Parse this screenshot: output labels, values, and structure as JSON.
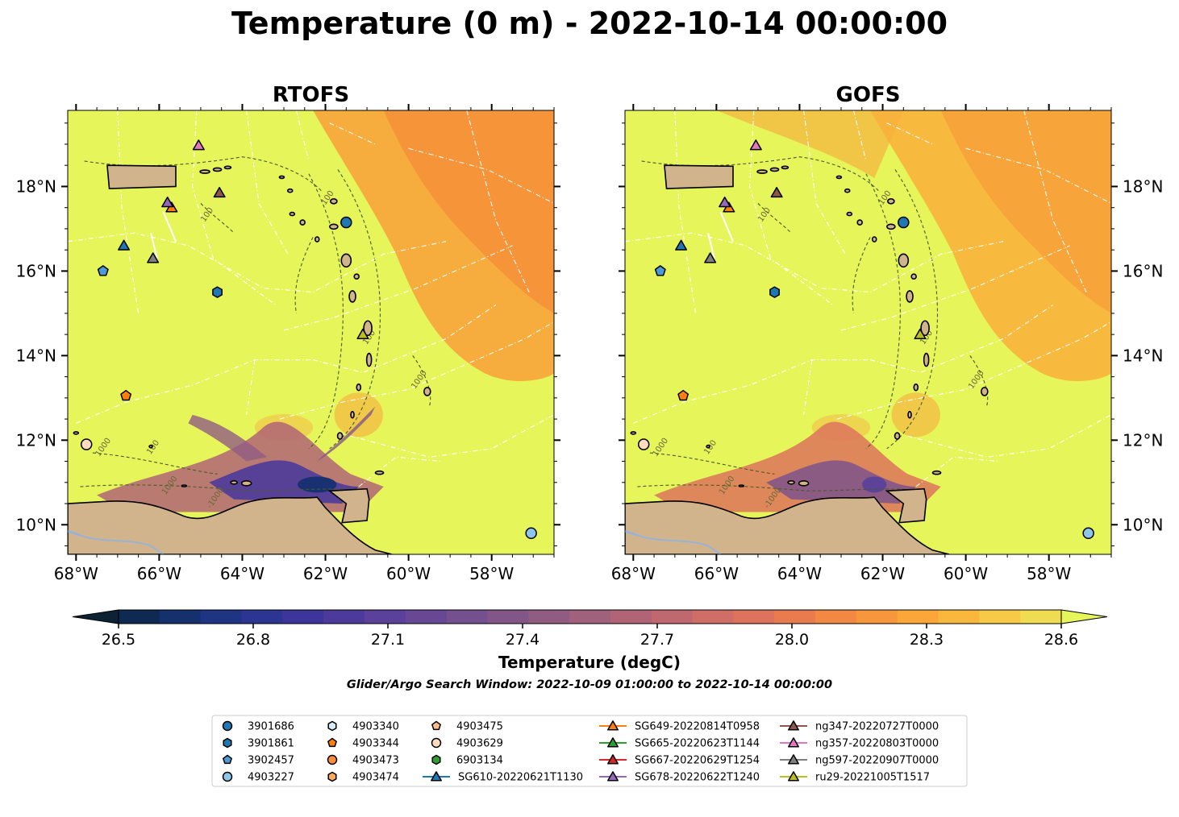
{
  "chart_data": {
    "type": "heatmap",
    "title": "Temperature (0 m) - 2022-10-14 00:00:00",
    "panels": [
      {
        "title": "RTOFS",
        "model": "RTOFS"
      },
      {
        "title": "GOFS",
        "model": "GOFS"
      }
    ],
    "xlim": [
      -68.2,
      -56.5
    ],
    "ylim": [
      9.3,
      19.8
    ],
    "x_ticks": [
      -68,
      -66,
      -64,
      -62,
      -60,
      -58
    ],
    "x_tick_labels": [
      "68°W",
      "66°W",
      "64°W",
      "62°W",
      "60°W",
      "58°W"
    ],
    "y_ticks": [
      10,
      12,
      14,
      16,
      18
    ],
    "y_tick_labels": [
      "10°N",
      "12°N",
      "14°N",
      "16°N",
      "18°N"
    ],
    "colorbar": {
      "label": "Temperature (degC)",
      "min": 26.4,
      "max": 28.6,
      "ticks": [
        26.5,
        26.8,
        27.1,
        27.4,
        27.7,
        28.0,
        28.3,
        28.6
      ],
      "tick_labels": [
        "26.5",
        "26.8",
        "27.1",
        "27.4",
        "27.7",
        "28.0",
        "28.3",
        "28.6"
      ],
      "colors": [
        "#0d2233",
        "#0f2a52",
        "#16306e",
        "#1f3584",
        "#2c3591",
        "#3d3599",
        "#4d3b9b",
        "#5a4199",
        "#684895",
        "#75508f",
        "#835688",
        "#915c82",
        "#a0617c",
        "#b06476",
        "#c0686f",
        "#cf6d67",
        "#dd735c",
        "#e87c4f",
        "#f18944",
        "#f7973c",
        "#faa638",
        "#f9b73e",
        "#f6c947",
        "#efdc52",
        "#e5f55a"
      ],
      "extend": "both"
    },
    "bathymetry_contour_labels": [
      "100",
      "1000"
    ],
    "contour_labels": [
      {
        "x": -64.8,
        "y": 17.3,
        "text": "100"
      },
      {
        "x": -61.9,
        "y": 17.7,
        "text": "100"
      },
      {
        "x": -59.7,
        "y": 13.4,
        "text": "1000"
      },
      {
        "x": -67.3,
        "y": 11.8,
        "text": "1000"
      },
      {
        "x": -66.1,
        "y": 11.8,
        "text": "100"
      },
      {
        "x": -65.7,
        "y": 10.9,
        "text": "1000"
      },
      {
        "x": -64.6,
        "y": 10.6,
        "text": "-1000"
      },
      {
        "x": -60.9,
        "y": 14.4,
        "text": "100"
      }
    ],
    "markers": [
      {
        "name": "3901686",
        "lon": -61.5,
        "lat": 17.15,
        "shape": "circle",
        "color": "#1f77b4"
      },
      {
        "name": "3901861",
        "lon": -64.6,
        "lat": 15.5,
        "shape": "hexagon",
        "color": "#1f77b4"
      },
      {
        "name": "3902457",
        "lon": -67.35,
        "lat": 16.0,
        "shape": "pentagon",
        "color": "#4a9bd8"
      },
      {
        "name": "4903227",
        "lon": -57.05,
        "lat": 9.8,
        "shape": "circle",
        "color": "#8ec6ea"
      },
      {
        "name": "4903344",
        "lon": -66.8,
        "lat": 13.05,
        "shape": "pentagon",
        "color": "#ff7f0e"
      },
      {
        "name": "4903629",
        "lon": -67.75,
        "lat": 11.9,
        "shape": "circle",
        "color": "#ffdcc0"
      },
      {
        "name": "SG610-20220621T1130",
        "lon": -66.85,
        "lat": 16.6,
        "shape": "triangle",
        "color": "#1f77b4"
      },
      {
        "name": "SG649-20220814T0958",
        "lon": -65.7,
        "lat": 17.5,
        "shape": "triangle",
        "color": "#ff7f0e"
      },
      {
        "name": "SG678-20220622T1240",
        "lon": -65.8,
        "lat": 17.62,
        "shape": "triangle",
        "color": "#9467bd"
      },
      {
        "name": "ng347-20220727T0000",
        "lon": -64.55,
        "lat": 17.85,
        "shape": "triangle",
        "color": "#8c564b"
      },
      {
        "name": "ng357-20220803T0000",
        "lon": -65.05,
        "lat": 18.97,
        "shape": "triangle",
        "color": "#e377c2"
      },
      {
        "name": "ng597-20220907T0000",
        "lon": -66.15,
        "lat": 16.3,
        "shape": "triangle",
        "color": "#7f7f7f"
      },
      {
        "name": "ru29-20221005T1517",
        "lon": -61.1,
        "lat": 14.5,
        "shape": "triangle",
        "color": "#bcbd22"
      }
    ],
    "subtitle": "Glider/Argo Search Window: 2022-10-09 01:00:00 to 2022-10-14 00:00:00",
    "legend": [
      [
        "3901686",
        "3901861",
        "3902457",
        "4903227"
      ],
      [
        "4903340",
        "4903344",
        "4903473",
        "4903474"
      ],
      [
        "4903475",
        "4903629",
        "6903134",
        "SG610-20220621T1130"
      ],
      [
        "SG649-20220814T0958",
        "SG665-20220623T1144",
        "SG667-20220629T1254",
        "SG678-20220622T1240"
      ],
      [
        "ng347-20220727T0000",
        "ng357-20220803T0000",
        "ng597-20220907T0000",
        "ru29-20221005T1517"
      ]
    ],
    "legend_styles": [
      [
        {
          "shape": "circle",
          "color": "#1f77b4"
        },
        {
          "shape": "hexagon",
          "color": "#1f77b4"
        },
        {
          "shape": "pentagon",
          "color": "#4a9bd8"
        },
        {
          "shape": "circle",
          "color": "#8ec6ea"
        }
      ],
      [
        {
          "shape": "hexagon",
          "color": "#d8ecfa"
        },
        {
          "shape": "pentagon",
          "color": "#ff7f0e"
        },
        {
          "shape": "circle",
          "color": "#ff8c3a"
        },
        {
          "shape": "hexagon",
          "color": "#ffa860"
        }
      ],
      [
        {
          "shape": "pentagon",
          "color": "#ffbb88"
        },
        {
          "shape": "circle",
          "color": "#ffdcc0"
        },
        {
          "shape": "hexagon",
          "color": "#2ca02c"
        },
        {
          "shape": "triangle",
          "color": "#1f77b4",
          "line": true
        }
      ],
      [
        {
          "shape": "triangle",
          "color": "#ff7f0e",
          "line": true
        },
        {
          "shape": "triangle",
          "color": "#2ca02c",
          "line": true
        },
        {
          "shape": "triangle",
          "color": "#d62728",
          "line": true
        },
        {
          "shape": "triangle",
          "color": "#9467bd",
          "line": true
        }
      ],
      [
        {
          "shape": "triangle",
          "color": "#8c564b",
          "line": true
        },
        {
          "shape": "triangle",
          "color": "#e377c2",
          "line": true
        },
        {
          "shape": "triangle",
          "color": "#7f7f7f",
          "line": true
        },
        {
          "shape": "triangle",
          "color": "#bcbd22",
          "line": true
        }
      ]
    ],
    "land_color": "#d2b48c",
    "ocean_base_color": "#e5f55a",
    "river_color": "#98b3d6",
    "eez_line_color": "#ffffff",
    "contour_color": "#4a5a2a"
  }
}
